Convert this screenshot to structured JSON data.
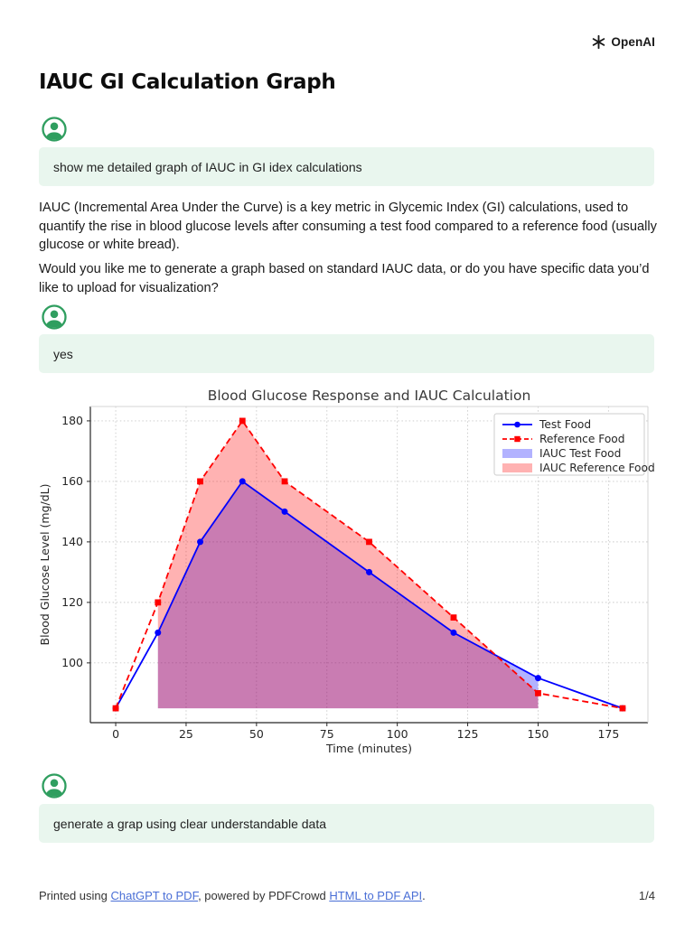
{
  "brand": {
    "name": "OpenAI"
  },
  "page": {
    "title": "IAUC GI Calculation Graph"
  },
  "messages": {
    "user1": "show me detailed graph of IAUC in GI idex calculations",
    "assistant_p1": "IAUC (Incremental Area Under the Curve) is a key metric in Glycemic Index (GI) calculations, used to quantify the rise in blood glucose levels after consuming a test food compared to a reference food (usually glucose or white bread).",
    "assistant_p2": "Would you like me to generate a graph based on standard IAUC data, or do you have specific data you’d like to upload for visualization?",
    "user2": "yes",
    "user3": "generate a grap using clear understandable data"
  },
  "footer": {
    "prefix": "Printed using ",
    "link1": "ChatGPT to PDF",
    "middle": ", powered by PDFCrowd ",
    "link2": "HTML to PDF API",
    "suffix": ".",
    "page_number": "1/4"
  },
  "colors": {
    "bubble_bg": "#e9f6ee",
    "avatar_green": "#2f9e5f",
    "link_blue": "#4a6fd6",
    "test_food": "#0000ff",
    "reference_food": "#ff0000",
    "iauc_test_fill": "rgba(0,0,255,0.3)",
    "iauc_reference_fill": "rgba(255,0,0,0.3)"
  },
  "chart_data": {
    "type": "line",
    "title": "Blood Glucose Response and IAUC Calculation",
    "xlabel": "Time (minutes)",
    "ylabel": "Blood Glucose Level (mg/dL)",
    "x": [
      0,
      15,
      30,
      45,
      60,
      90,
      120,
      150,
      180
    ],
    "series": [
      {
        "name": "Test Food",
        "color": "#0000ff",
        "style": "solid",
        "marker": "circle",
        "values": [
          85,
          110,
          140,
          160,
          150,
          130,
          110,
          95,
          85
        ]
      },
      {
        "name": "Reference Food",
        "color": "#ff0000",
        "style": "dashed",
        "marker": "square",
        "values": [
          85,
          120,
          160,
          180,
          160,
          140,
          115,
          90,
          85
        ]
      }
    ],
    "fills": [
      {
        "name": "IAUC Test Food",
        "series": "Test Food",
        "color": "rgba(0,0,255,0.3)",
        "baseline": 85,
        "range": [
          15,
          150
        ]
      },
      {
        "name": "IAUC Reference Food",
        "series": "Reference Food",
        "color": "rgba(255,0,0,0.3)",
        "baseline": 85,
        "range": [
          15,
          150
        ]
      }
    ],
    "xticks": [
      0,
      25,
      50,
      75,
      100,
      125,
      150,
      175
    ],
    "yticks": [
      100,
      120,
      140,
      160,
      180
    ],
    "xlim": [
      -9,
      189
    ],
    "ylim": [
      80.25,
      184.75
    ],
    "grid": true,
    "legend_position": "upper right"
  }
}
